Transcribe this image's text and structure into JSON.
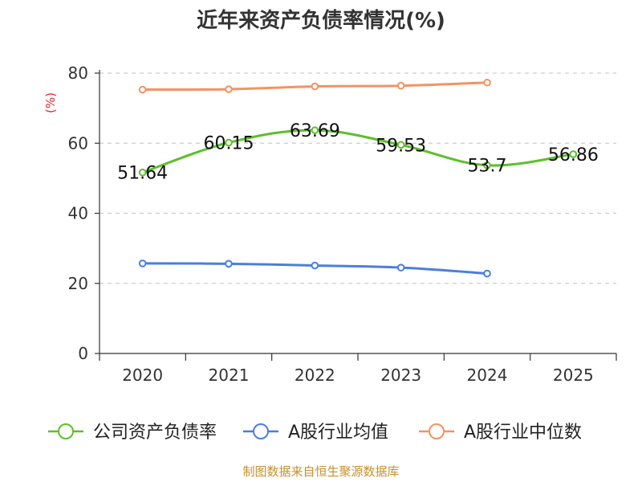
{
  "chart_data": {
    "type": "line",
    "title": "近年来资产负债率情况(%)",
    "ylabel": "(%)",
    "xlabel": "",
    "categories": [
      "2020",
      "2021",
      "2022",
      "2023",
      "2024",
      "2025"
    ],
    "ylim": [
      0,
      80
    ],
    "yticks": [
      0,
      20,
      40,
      60,
      80
    ],
    "grid": true,
    "legend_position": "bottom",
    "series": [
      {
        "name": "公司资产负债率",
        "color": "#5cc02b",
        "values": [
          51.64,
          60.15,
          63.69,
          59.53,
          53.7,
          56.86
        ],
        "labels": [
          "51.64",
          "60.15",
          "63.69",
          "59.53",
          "53.7",
          "56.86"
        ]
      },
      {
        "name": "A股行业均值",
        "color": "#4a7fdd",
        "values": [
          25.7,
          25.6,
          25.1,
          24.5,
          22.8,
          null
        ]
      },
      {
        "name": "A股行业中位数",
        "color": "#f59262",
        "values": [
          75.3,
          75.4,
          76.2,
          76.4,
          77.3,
          null
        ]
      }
    ],
    "source": "制图数据来自恒生聚源数据库"
  }
}
